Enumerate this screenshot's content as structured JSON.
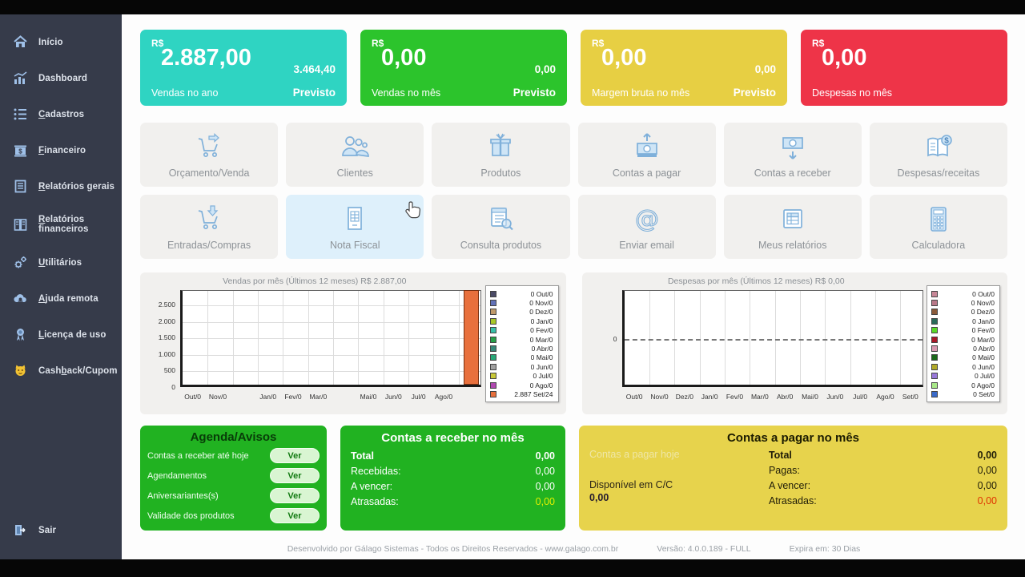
{
  "sidebar": {
    "items": [
      {
        "label": "Início",
        "accel": -1,
        "icon": "home-icon"
      },
      {
        "label": "Dashboard",
        "accel": -1,
        "icon": "dashboard-chart-icon"
      },
      {
        "label": "Cadastros",
        "accel": 0,
        "icon": "list-icon"
      },
      {
        "label": "Financeiro",
        "accel": 0,
        "icon": "bank-icon"
      },
      {
        "label": "Relatórios gerais",
        "accel": 0,
        "icon": "report-icon"
      },
      {
        "label": "Relatórios financeiros",
        "accel": 0,
        "icon": "financial-report-icon"
      },
      {
        "label": "Utilitários",
        "accel": 0,
        "icon": "gears-icon"
      },
      {
        "label": "Ajuda remota",
        "accel": 0,
        "icon": "cloud-icon"
      },
      {
        "label": "Licença de uso",
        "accel": 0,
        "icon": "medal-icon"
      },
      {
        "label": "Cashback/Cupom",
        "accel": 4,
        "icon": "cat-icon"
      }
    ],
    "exit": {
      "label": "Sair",
      "icon": "exit-icon"
    }
  },
  "kpi_cards": [
    {
      "currency": "R$",
      "value": "2.887,00",
      "label": "Vendas no ano",
      "forecast_value": "3.464,40",
      "forecast_label": "Previsto",
      "color": "#2fd4c2"
    },
    {
      "currency": "R$",
      "value": "0,00",
      "label": "Vendas no mês",
      "forecast_value": "0,00",
      "forecast_label": "Previsto",
      "color": "#2cc42c"
    },
    {
      "currency": "R$",
      "value": "0,00",
      "label": "Margem bruta no mês",
      "forecast_value": "0,00",
      "forecast_label": "Previsto",
      "color": "#e7cf43"
    },
    {
      "currency": "R$",
      "value": "0,00",
      "label": "Despesas no mês",
      "forecast_value": "",
      "forecast_label": "",
      "color": "#ee3448"
    }
  ],
  "tiles": [
    {
      "label": "Orçamento/Venda",
      "icon": "cart-arrow-right-icon",
      "highlighted": false
    },
    {
      "label": "Clientes",
      "icon": "clients-icon",
      "highlighted": false
    },
    {
      "label": "Produtos",
      "icon": "gift-icon",
      "highlighted": false
    },
    {
      "label": "Contas a pagar",
      "icon": "money-arrow-up-icon",
      "highlighted": false
    },
    {
      "label": "Contas a receber",
      "icon": "money-arrow-down-icon",
      "highlighted": false
    },
    {
      "label": "Despesas/receitas",
      "icon": "ledger-icon",
      "highlighted": false
    },
    {
      "label": "Entradas/Compras",
      "icon": "cart-arrow-down-icon",
      "highlighted": false
    },
    {
      "label": "Nota Fiscal",
      "icon": "invoice-icon",
      "highlighted": true
    },
    {
      "label": "Consulta produtos",
      "icon": "doc-search-icon",
      "highlighted": false
    },
    {
      "label": "Enviar email",
      "icon": "at-sign-icon",
      "highlighted": false
    },
    {
      "label": "Meus relatórios",
      "icon": "report-table-icon",
      "highlighted": false
    },
    {
      "label": "Calculadora",
      "icon": "calculator-icon",
      "highlighted": false
    }
  ],
  "chart_data": [
    {
      "type": "bar",
      "title": "Vendas por mês (Últimos 12 meses) R$ 2.887,00",
      "categories": [
        "Out/0",
        "Nov/0",
        "Dez/0",
        "Jan/0",
        "Fev/0",
        "Mar/0",
        "Abr/0",
        "Mai/0",
        "Jun/0",
        "Jul/0",
        "Ago/0",
        "Set/24"
      ],
      "x_axis_labels": [
        "Out/0",
        "Nov/0",
        "",
        "Jan/0",
        "Fev/0",
        "Mar/0",
        "",
        "Mai/0",
        "Jun/0",
        "Jul/0",
        "Ago/0",
        ""
      ],
      "values": [
        0,
        0,
        0,
        0,
        0,
        0,
        0,
        0,
        0,
        0,
        0,
        2887
      ],
      "y_ticks": [
        0,
        500,
        1000,
        1500,
        2000,
        2500
      ],
      "y_tick_labels": [
        "0",
        "500",
        "1.000",
        "1.500",
        "2.000",
        "2.500"
      ],
      "ylim": [
        0,
        2950
      ],
      "grid": true,
      "legend_position": "right",
      "bar_color": "#e8703d",
      "zero_dashed": false,
      "legend": [
        {
          "value": "0",
          "label": "Out/0",
          "color": "#4a4a66"
        },
        {
          "value": "0",
          "label": "Nov/0",
          "color": "#6272b8"
        },
        {
          "value": "0",
          "label": "Dez/0",
          "color": "#c09a6a"
        },
        {
          "value": "0",
          "label": "Jan/0",
          "color": "#a8c828"
        },
        {
          "value": "0",
          "label": "Fev/0",
          "color": "#38c0a8"
        },
        {
          "value": "0",
          "label": "Mar/0",
          "color": "#28a048"
        },
        {
          "value": "0",
          "label": "Abr/0",
          "color": "#388878"
        },
        {
          "value": "0",
          "label": "Mai/0",
          "color": "#28a878"
        },
        {
          "value": "0",
          "label": "Jun/0",
          "color": "#a0a0a0"
        },
        {
          "value": "0",
          "label": "Jul/0",
          "color": "#c8c838"
        },
        {
          "value": "0",
          "label": "Ago/0",
          "color": "#b048b0"
        },
        {
          "value": "2.887",
          "label": "Set/24",
          "color": "#e8703d"
        }
      ]
    },
    {
      "type": "bar",
      "title": "Despesas por mês (Últimos 12 meses) R$ 0,00",
      "categories": [
        "Out/0",
        "Nov/0",
        "Dez/0",
        "Jan/0",
        "Fev/0",
        "Mar/0",
        "Abr/0",
        "Mai/0",
        "Jun/0",
        "Jul/0",
        "Ago/0",
        "Set/0"
      ],
      "x_axis_labels": [
        "Out/0",
        "Nov/0",
        "Dez/0",
        "Jan/0",
        "Fev/0",
        "Mar/0",
        "Abr/0",
        "Mai/0",
        "Jun/0",
        "Jul/0",
        "Ago/0",
        "Set/0"
      ],
      "values": [
        0,
        0,
        0,
        0,
        0,
        0,
        0,
        0,
        0,
        0,
        0,
        0
      ],
      "y_ticks": [
        0
      ],
      "y_tick_labels": [
        "0"
      ],
      "ylim": [
        -1,
        1
      ],
      "grid": true,
      "legend_position": "right",
      "bar_color": "#c88898",
      "zero_dashed": true,
      "legend": [
        {
          "value": "0",
          "label": "Out/0",
          "color": "#c88898"
        },
        {
          "value": "0",
          "label": "Nov/0",
          "color": "#b87888"
        },
        {
          "value": "0",
          "label": "Dez/0",
          "color": "#8a5a3a"
        },
        {
          "value": "0",
          "label": "Jan/0",
          "color": "#2a6a5a"
        },
        {
          "value": "0",
          "label": "Fev/0",
          "color": "#58d828"
        },
        {
          "value": "0",
          "label": "Mar/0",
          "color": "#a81828"
        },
        {
          "value": "0",
          "label": "Abr/0",
          "color": "#d898b0"
        },
        {
          "value": "0",
          "label": "Mai/0",
          "color": "#1a681a"
        },
        {
          "value": "0",
          "label": "Jun/0",
          "color": "#b0a828"
        },
        {
          "value": "0",
          "label": "Jul/0",
          "color": "#9878d8"
        },
        {
          "value": "0",
          "label": "Ago/0",
          "color": "#a8e888"
        },
        {
          "value": "0",
          "label": "Set/0",
          "color": "#3a6ac8"
        }
      ]
    }
  ],
  "panels": {
    "agenda": {
      "title": "Agenda/Avisos",
      "color": "#21b221",
      "rows": [
        {
          "label": "Contas a receber até hoje",
          "button": "Ver"
        },
        {
          "label": "Agendamentos",
          "button": "Ver"
        },
        {
          "label": "Aniversariantes(s)",
          "button": "Ver"
        },
        {
          "label": "Validade dos produtos",
          "button": "Ver"
        }
      ]
    },
    "receber": {
      "title": "Contas a receber no mês",
      "color": "#21b221",
      "rows": [
        {
          "label": "Total",
          "value": "0,00",
          "bold": true,
          "value_color": ""
        },
        {
          "label": "Recebidas:",
          "value": "0,00",
          "bold": false,
          "value_color": ""
        },
        {
          "label": "A vencer:",
          "value": "0,00",
          "bold": false,
          "value_color": ""
        },
        {
          "label": "Atrasadas:",
          "value": "0,00",
          "bold": false,
          "value_color": "#e2f000"
        }
      ]
    },
    "pagar": {
      "title": "Contas a pagar no mês",
      "color": "#e7d34c",
      "hoje_label": "Contas a pagar hoje",
      "disponivel_label": "Disponível em C/C",
      "disponivel_value": "0,00",
      "rows": [
        {
          "label": "Total",
          "value": "0,00",
          "bold": true,
          "value_color": ""
        },
        {
          "label": "Pagas:",
          "value": "0,00",
          "bold": false,
          "value_color": ""
        },
        {
          "label": "A vencer:",
          "value": "0,00",
          "bold": false,
          "value_color": ""
        },
        {
          "label": "Atrasadas:",
          "value": "0,00",
          "bold": false,
          "value_color": "#e03400"
        }
      ]
    }
  },
  "footer": {
    "developer": "Desenvolvido por Gálago Sistemas - Todos os Direitos Reservados - www.galago.com.br",
    "version": "Versão: 4.0.0.189  - FULL",
    "expires": "Expira em: 30 Dias"
  }
}
